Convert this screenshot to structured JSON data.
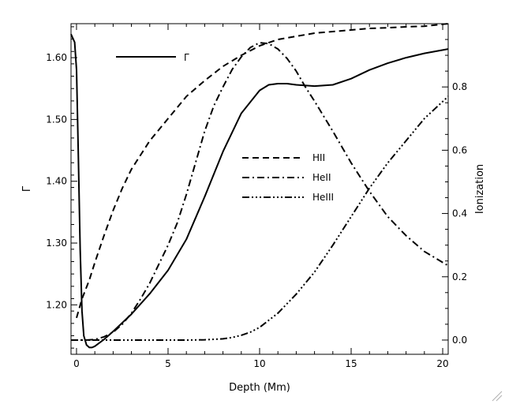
{
  "chart_data": {
    "type": "line",
    "xlabel": "Depth (Mm)",
    "ylabel_left": "Γ",
    "ylabel_right": "Ionization",
    "xlim": [
      -0.3,
      20.3
    ],
    "ylim_left": [
      1.12,
      1.655
    ],
    "ylim_right": [
      -0.045,
      1.0
    ],
    "x_ticks": [
      0,
      5,
      10,
      15,
      20
    ],
    "x_tick_labels": [
      "0",
      "5",
      "10",
      "15",
      "20"
    ],
    "y_left_ticks": [
      1.2,
      1.3,
      1.4,
      1.5,
      1.6
    ],
    "y_left_tick_labels": [
      "1.20",
      "1.30",
      "1.40",
      "1.50",
      "1.60"
    ],
    "y_right_ticks": [
      0.0,
      0.2,
      0.4,
      0.6,
      0.8
    ],
    "y_right_tick_labels": [
      "0.0",
      "0.2",
      "0.4",
      "0.6",
      "0.8"
    ],
    "series": [
      {
        "name": "Γ",
        "axis": "left",
        "style": "solid",
        "x": [
          -0.3,
          -0.1,
          0.0,
          0.1,
          0.2,
          0.3,
          0.4,
          0.55,
          0.7,
          0.85,
          1.0,
          1.5,
          2.0,
          3.0,
          4.0,
          5.0,
          6.0,
          7.0,
          8.0,
          9.0,
          10.0,
          10.5,
          11.0,
          11.5,
          12.0,
          13.0,
          14.0,
          15.0,
          16.0,
          17.0,
          18.0,
          19.0,
          20.3
        ],
        "y": [
          1.638,
          1.625,
          1.58,
          1.44,
          1.29,
          1.19,
          1.15,
          1.135,
          1.131,
          1.131,
          1.133,
          1.144,
          1.157,
          1.185,
          1.218,
          1.256,
          1.306,
          1.375,
          1.448,
          1.51,
          1.547,
          1.556,
          1.558,
          1.558,
          1.556,
          1.554,
          1.556,
          1.566,
          1.58,
          1.591,
          1.6,
          1.607,
          1.614
        ]
      },
      {
        "name": "HII",
        "axis": "right",
        "style": "dashed",
        "x": [
          0.0,
          0.3,
          0.7,
          1.0,
          1.5,
          2.0,
          2.5,
          3.0,
          4.0,
          5.0,
          6.0,
          7.0,
          8.0,
          9.0,
          10.0,
          11.0,
          12.0,
          13.0,
          14.0,
          15.0,
          16.0,
          17.0,
          18.0,
          19.0,
          20.3
        ],
        "y": [
          0.07,
          0.13,
          0.19,
          0.245,
          0.33,
          0.41,
          0.48,
          0.54,
          0.63,
          0.7,
          0.77,
          0.82,
          0.865,
          0.9,
          0.93,
          0.95,
          0.96,
          0.97,
          0.975,
          0.98,
          0.985,
          0.987,
          0.99,
          0.992,
          1.0
        ]
      },
      {
        "name": "HeII",
        "axis": "right",
        "style": "dashdot",
        "x": [
          -0.3,
          0.5,
          1.0,
          1.5,
          2.0,
          2.5,
          3.0,
          3.5,
          4.0,
          4.5,
          5.0,
          5.5,
          6.0,
          6.5,
          7.0,
          7.5,
          8.0,
          8.5,
          9.0,
          9.5,
          10.0,
          10.5,
          11.0,
          11.5,
          12.0,
          12.5,
          13.0,
          14.0,
          15.0,
          16.0,
          17.0,
          18.0,
          19.0,
          20.3
        ],
        "y": [
          0.0,
          0.0,
          0.002,
          0.01,
          0.025,
          0.05,
          0.085,
          0.13,
          0.18,
          0.24,
          0.3,
          0.37,
          0.46,
          0.56,
          0.66,
          0.74,
          0.8,
          0.855,
          0.895,
          0.925,
          0.94,
          0.937,
          0.92,
          0.89,
          0.85,
          0.8,
          0.755,
          0.66,
          0.56,
          0.47,
          0.39,
          0.33,
          0.28,
          0.235
        ]
      },
      {
        "name": "HeIII",
        "axis": "right",
        "style": "dashdotdotdot",
        "x": [
          -0.3,
          2.0,
          4.0,
          6.0,
          7.0,
          8.0,
          8.5,
          9.0,
          9.5,
          10.0,
          11.0,
          12.0,
          13.0,
          14.0,
          15.0,
          16.0,
          17.0,
          18.0,
          19.0,
          20.3
        ],
        "y": [
          0.0,
          0.0,
          0.0,
          0.0,
          0.001,
          0.004,
          0.008,
          0.015,
          0.025,
          0.04,
          0.085,
          0.145,
          0.215,
          0.3,
          0.39,
          0.48,
          0.56,
          0.63,
          0.7,
          0.77
        ]
      }
    ],
    "key_label": "Γ",
    "legend": [
      {
        "name": "HII",
        "style": "dashed"
      },
      {
        "name": "HeII",
        "style": "dashdot"
      },
      {
        "name": "HeIII",
        "style": "dashdotdotdot"
      }
    ]
  }
}
